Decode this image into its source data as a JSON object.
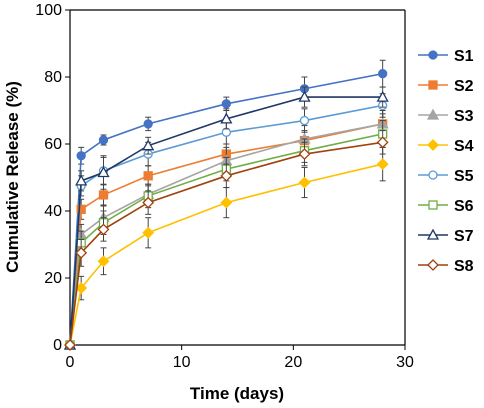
{
  "chart_data": {
    "type": "line",
    "title": "",
    "xlabel": "Time (days)",
    "ylabel": "Cumulative Release (%)",
    "xlim": [
      0,
      30
    ],
    "ylim": [
      0,
      100
    ],
    "xticks": [
      0,
      10,
      20,
      30
    ],
    "yticks": [
      0,
      20,
      40,
      60,
      80,
      100
    ],
    "grid": false,
    "legend_position": "right",
    "x": [
      0,
      1,
      3,
      7,
      14,
      21,
      28
    ],
    "series": [
      {
        "name": "S1",
        "color": "#4472C4",
        "marker": "circle",
        "values": [
          0,
          56.5,
          61.2,
          66.0,
          72.0,
          76.5,
          81.0
        ],
        "errors": [
          0,
          2.5,
          1.5,
          2.0,
          2.0,
          3.5,
          4.0
        ]
      },
      {
        "name": "S2",
        "color": "#ED7D31",
        "marker": "square",
        "values": [
          0,
          40.5,
          44.8,
          50.5,
          57.0,
          61.0,
          66.0
        ],
        "errors": [
          0,
          3.0,
          3.0,
          3.0,
          3.0,
          3.0,
          3.0
        ]
      },
      {
        "name": "S3",
        "color": "#A5A5A5",
        "marker": "triangle",
        "values": [
          0,
          33.0,
          38.0,
          45.0,
          55.0,
          61.5,
          66.0
        ],
        "errors": [
          0,
          3.0,
          3.5,
          3.0,
          4.0,
          4.0,
          4.0
        ]
      },
      {
        "name": "S4",
        "color": "#FFC000",
        "marker": "diamond",
        "values": [
          0,
          17.0,
          25.0,
          33.5,
          42.5,
          48.5,
          54.0
        ],
        "errors": [
          0,
          3.5,
          4.0,
          4.5,
          4.5,
          4.5,
          5.0
        ]
      },
      {
        "name": "S5",
        "color": "#5B9BD5",
        "marker": "circle-open",
        "values": [
          0,
          47.5,
          52.0,
          57.0,
          63.5,
          67.0,
          71.5
        ],
        "errors": [
          0,
          3.0,
          4.0,
          3.5,
          3.5,
          3.5,
          3.5
        ]
      },
      {
        "name": "S6",
        "color": "#70AD47",
        "marker": "square-open",
        "values": [
          0,
          30.5,
          36.5,
          44.5,
          52.5,
          58.0,
          63.0
        ],
        "errors": [
          0,
          3.5,
          3.5,
          3.5,
          3.5,
          3.5,
          4.0
        ]
      },
      {
        "name": "S7",
        "color": "#203864",
        "marker": "triangle-open",
        "values": [
          0,
          49.0,
          51.5,
          59.5,
          67.5,
          74.0,
          74.0
        ],
        "errors": [
          0,
          3.0,
          5.0,
          2.5,
          3.0,
          3.0,
          3.0
        ]
      },
      {
        "name": "S8",
        "color": "#A0410D",
        "marker": "diamond-open",
        "values": [
          0,
          27.5,
          34.5,
          42.5,
          50.5,
          57.0,
          60.5
        ],
        "errors": [
          0,
          4.0,
          3.5,
          3.5,
          3.5,
          3.5,
          3.5
        ]
      }
    ]
  }
}
